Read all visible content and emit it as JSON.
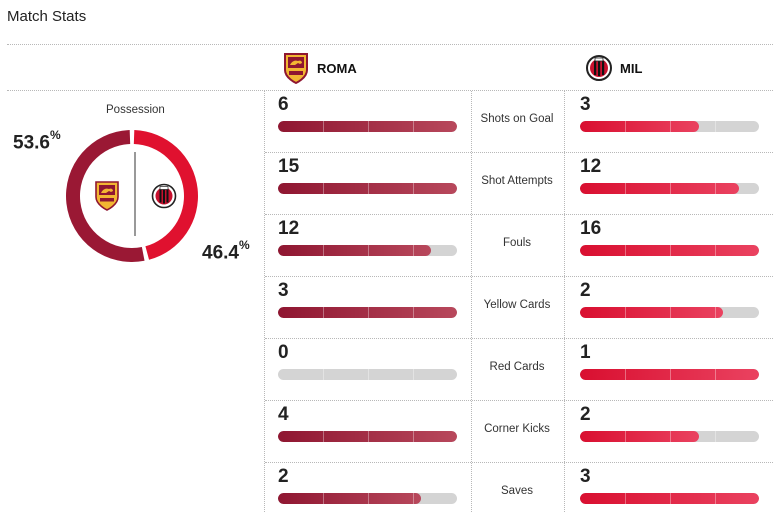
{
  "header": {
    "title": "Match Stats"
  },
  "teams": {
    "home": {
      "name": "ROMA",
      "crest": "roma-crest",
      "color": "#8f1631"
    },
    "away": {
      "name": "MIL",
      "crest": "milan-crest",
      "color": "#d90f30"
    }
  },
  "possession": {
    "label": "Possession",
    "home": "53.6",
    "away": "46.4",
    "unit": "%",
    "home_value": 53.6,
    "away_value": 46.4
  },
  "stats": [
    {
      "label": "Shots on Goal",
      "home": "6",
      "away": "3"
    },
    {
      "label": "Shot Attempts",
      "home": "15",
      "away": "12"
    },
    {
      "label": "Fouls",
      "home": "12",
      "away": "16"
    },
    {
      "label": "Yellow Cards",
      "home": "3",
      "away": "2"
    },
    {
      "label": "Red Cards",
      "home": "0",
      "away": "1"
    },
    {
      "label": "Corner Kicks",
      "home": "4",
      "away": "2"
    },
    {
      "label": "Saves",
      "home": "2",
      "away": "3"
    }
  ]
}
